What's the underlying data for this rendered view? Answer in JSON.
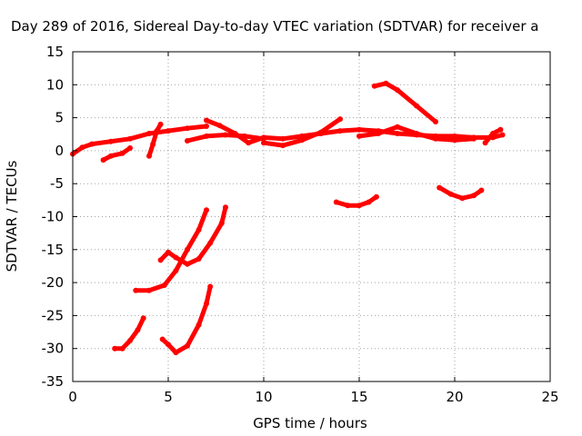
{
  "chart_data": {
    "type": "scatter",
    "title": "Day 289 of 2016, Sidereal Day-to-day VTEC variation (SDTVAR) for receiver a",
    "xlabel": "GPS time / hours",
    "ylabel": "SDTVAR / TECUs",
    "xlim": [
      0,
      25
    ],
    "ylim": [
      -35,
      15
    ],
    "xticks": [
      "0",
      "5",
      "10",
      "15",
      "20",
      "25"
    ],
    "yticks": [
      "15",
      "10",
      "5",
      "0",
      "-5",
      "-10",
      "-15",
      "-20",
      "-25",
      "-30",
      "-35"
    ],
    "grid": true,
    "legend": "none",
    "series_color": "#ff0000",
    "grid_color": "#a0a0a0",
    "series": [
      {
        "points": [
          [
            0.0,
            -0.5
          ],
          [
            0.5,
            0.5
          ],
          [
            1.0,
            1.0
          ],
          [
            2.0,
            1.4
          ],
          [
            3.0,
            1.8
          ],
          [
            4.0,
            2.6
          ],
          [
            5.0,
            3.0
          ],
          [
            6.0,
            3.4
          ],
          [
            7.0,
            3.7
          ]
        ]
      },
      {
        "points": [
          [
            1.6,
            -1.4
          ],
          [
            2.0,
            -0.8
          ],
          [
            2.6,
            -0.4
          ],
          [
            3.0,
            0.4
          ]
        ]
      },
      {
        "points": [
          [
            4.0,
            -0.8
          ],
          [
            4.2,
            1.0
          ],
          [
            4.4,
            3.0
          ],
          [
            4.6,
            4.0
          ]
        ]
      },
      {
        "points": [
          [
            6.0,
            1.5
          ],
          [
            7.0,
            2.2
          ],
          [
            8.0,
            2.4
          ],
          [
            9.0,
            2.2
          ],
          [
            10.0,
            1.8
          ]
        ]
      },
      {
        "points": [
          [
            7.0,
            4.6
          ],
          [
            7.7,
            3.8
          ],
          [
            8.5,
            2.6
          ],
          [
            9.2,
            1.2
          ],
          [
            10.0,
            2.0
          ],
          [
            11.0,
            1.8
          ],
          [
            12.0,
            2.2
          ],
          [
            13.0,
            2.6
          ],
          [
            14.0,
            3.0
          ],
          [
            15.0,
            3.2
          ],
          [
            16.0,
            3.0
          ],
          [
            17.0,
            2.6
          ],
          [
            18.0,
            2.4
          ],
          [
            19.0,
            2.2
          ],
          [
            20.0,
            2.2
          ],
          [
            21.0,
            2.0
          ],
          [
            22.0,
            2.0
          ],
          [
            22.5,
            2.4
          ]
        ]
      },
      {
        "points": [
          [
            10.0,
            1.2
          ],
          [
            11.0,
            0.8
          ],
          [
            12.0,
            1.6
          ],
          [
            13.0,
            2.8
          ],
          [
            14.0,
            4.8
          ]
        ]
      },
      {
        "points": [
          [
            15.0,
            2.2
          ],
          [
            16.0,
            2.6
          ],
          [
            17.0,
            3.6
          ],
          [
            18.0,
            2.6
          ],
          [
            19.0,
            1.8
          ],
          [
            20.0,
            1.6
          ],
          [
            21.0,
            1.8
          ]
        ]
      },
      {
        "points": [
          [
            21.6,
            1.2
          ],
          [
            22.0,
            2.6
          ],
          [
            22.4,
            3.2
          ]
        ]
      },
      {
        "points": [
          [
            15.8,
            9.8
          ],
          [
            16.4,
            10.2
          ],
          [
            17.0,
            9.2
          ],
          [
            18.0,
            6.8
          ],
          [
            19.0,
            4.4
          ]
        ]
      },
      {
        "points": [
          [
            13.8,
            -7.8
          ],
          [
            14.4,
            -8.3
          ],
          [
            15.0,
            -8.3
          ],
          [
            15.5,
            -7.8
          ],
          [
            15.9,
            -7.0
          ]
        ]
      },
      {
        "points": [
          [
            19.2,
            -5.6
          ],
          [
            19.8,
            -6.6
          ],
          [
            20.4,
            -7.2
          ],
          [
            21.0,
            -6.8
          ],
          [
            21.4,
            -6.0
          ]
        ]
      },
      {
        "points": [
          [
            4.6,
            -16.6
          ],
          [
            5.0,
            -15.4
          ],
          [
            5.4,
            -16.2
          ],
          [
            6.0,
            -17.2
          ],
          [
            6.6,
            -16.4
          ],
          [
            7.2,
            -14.0
          ],
          [
            7.8,
            -11.0
          ],
          [
            8.0,
            -8.6
          ]
        ]
      },
      {
        "points": [
          [
            3.3,
            -21.2
          ],
          [
            4.0,
            -21.2
          ],
          [
            4.8,
            -20.4
          ],
          [
            5.4,
            -18.2
          ],
          [
            6.0,
            -15.0
          ],
          [
            6.6,
            -12.0
          ],
          [
            7.0,
            -9.0
          ]
        ]
      },
      {
        "points": [
          [
            2.2,
            -30.0
          ],
          [
            2.6,
            -30.0
          ],
          [
            3.0,
            -28.8
          ],
          [
            3.4,
            -27.2
          ],
          [
            3.7,
            -25.4
          ]
        ]
      },
      {
        "points": [
          [
            4.7,
            -28.6
          ],
          [
            5.0,
            -29.4
          ],
          [
            5.4,
            -30.6
          ],
          [
            6.0,
            -29.6
          ],
          [
            6.6,
            -26.4
          ],
          [
            7.0,
            -23.2
          ],
          [
            7.2,
            -20.6
          ]
        ]
      }
    ]
  }
}
